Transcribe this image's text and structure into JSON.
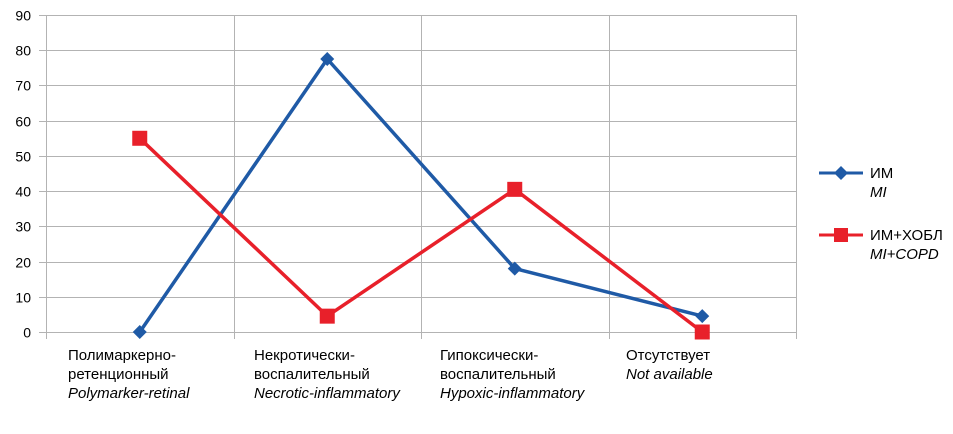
{
  "chart_data": {
    "type": "line",
    "title": "",
    "xlabel": "",
    "ylabel": "",
    "ylim": [
      0,
      90
    ],
    "yticks": [
      0,
      10,
      20,
      30,
      40,
      50,
      60,
      70,
      80,
      90
    ],
    "grid": true,
    "legend_position": "right",
    "categories": [
      {
        "ru": "Полимаркерно-ретенционный",
        "en": "Polymarker-retinal"
      },
      {
        "ru": "Некротически-воспалительный",
        "en": "Necrotic-inflammatory"
      },
      {
        "ru": "Гипоксически-воспалительный",
        "en": "Hypoxic-inflammatory"
      },
      {
        "ru": "Отсутствует",
        "en": "Not available"
      }
    ],
    "series": [
      {
        "name": "ИМ",
        "name_en": "MI",
        "color": "#1f5aa6",
        "marker": "diamond",
        "values": [
          0,
          77.5,
          18,
          4.5
        ]
      },
      {
        "name": "ИМ+ХОБЛ",
        "name_en": "MI+COPD",
        "color": "#e8202a",
        "marker": "square",
        "values": [
          55,
          4.5,
          40.5,
          0
        ]
      }
    ]
  }
}
